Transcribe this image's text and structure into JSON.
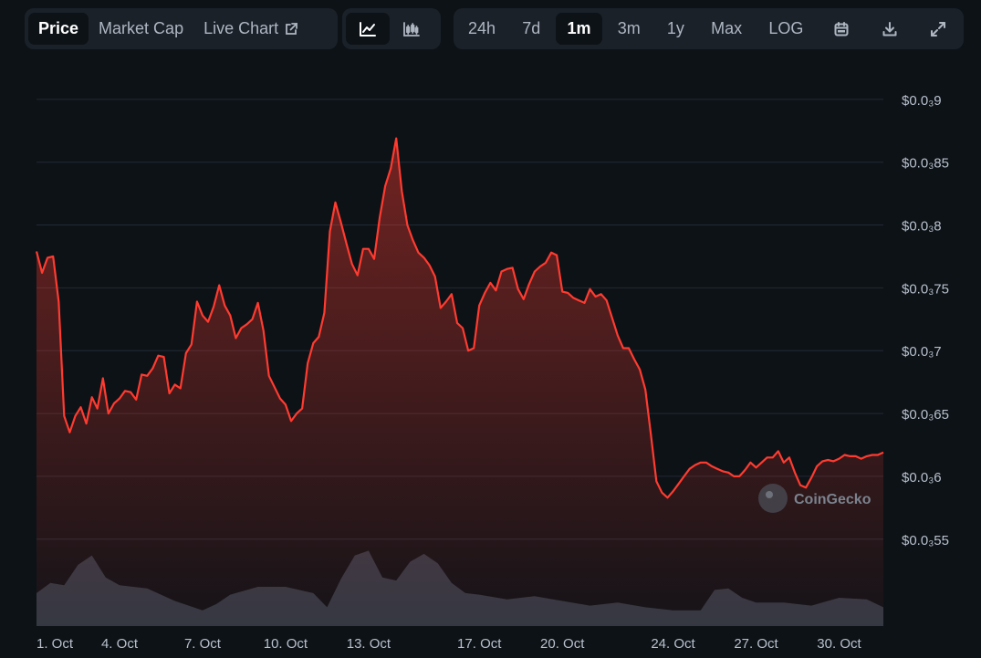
{
  "toolbar": {
    "metric_tabs": [
      {
        "label": "Price",
        "active": true
      },
      {
        "label": "Market Cap",
        "active": false
      },
      {
        "label": "Live Chart",
        "active": false
      }
    ],
    "chart_style_buttons": [
      {
        "icon": "line-chart-icon",
        "active": true
      },
      {
        "icon": "candlestick-chart-icon",
        "active": false
      }
    ],
    "ranges": [
      {
        "label": "24h",
        "active": false
      },
      {
        "label": "7d",
        "active": false
      },
      {
        "label": "1m",
        "active": true
      },
      {
        "label": "3m",
        "active": false
      },
      {
        "label": "1y",
        "active": false
      },
      {
        "label": "Max",
        "active": false
      }
    ],
    "log_label": "LOG",
    "tool_icons": [
      "calendar-icon",
      "download-icon",
      "expand-icon"
    ]
  },
  "watermark": "CoinGecko",
  "colors": {
    "line": "#ff3b30",
    "grid": "#232a33",
    "volume": "#2f3843",
    "background": "#0d1217",
    "toolbar_bg": "#1b2129"
  },
  "chart_data": {
    "type": "area",
    "title": "",
    "xlabel": "",
    "ylabel": "",
    "y_unit": "USD",
    "y_label_note": "$0.0₃9 = $0.0009 (subscript = count of zeros after decimal point)",
    "ylim": [
      0.000552,
      0.000905
    ],
    "y_ticks": [
      {
        "value": 0.00055,
        "label": "$0.0₃55"
      },
      {
        "value": 0.0006,
        "label": "$0.0₃6"
      },
      {
        "value": 0.00065,
        "label": "$0.0₃65"
      },
      {
        "value": 0.0007,
        "label": "$0.0₃7"
      },
      {
        "value": 0.00075,
        "label": "$0.0₃75"
      },
      {
        "value": 0.0008,
        "label": "$0.0₃8"
      },
      {
        "value": 0.00085,
        "label": "$0.0₃85"
      },
      {
        "value": 0.0009,
        "label": "$0.0₃9"
      }
    ],
    "x_domain_days": [
      1.0,
      31.6
    ],
    "x_ticks": [
      {
        "day": 1,
        "label": "1. Oct"
      },
      {
        "day": 4,
        "label": "4. Oct"
      },
      {
        "day": 7,
        "label": "7. Oct"
      },
      {
        "day": 10,
        "label": "10. Oct"
      },
      {
        "day": 13,
        "label": "13. Oct"
      },
      {
        "day": 17,
        "label": "17. Oct"
      },
      {
        "day": 20,
        "label": "20. Oct"
      },
      {
        "day": 24,
        "label": "24. Oct"
      },
      {
        "day": 27,
        "label": "27. Oct"
      },
      {
        "day": 30,
        "label": "30. Oct"
      }
    ],
    "grid": true,
    "series": [
      {
        "x_day": [
          1.0,
          1.2,
          1.4,
          1.6,
          1.8,
          2.0,
          2.2,
          2.4,
          2.6,
          2.8,
          3.0,
          3.2,
          3.4,
          3.6,
          3.8,
          4.0,
          4.2,
          4.4,
          4.6,
          4.8,
          5.0,
          5.2,
          5.4,
          5.6,
          5.8,
          6.0,
          6.2,
          6.4,
          6.6,
          6.8,
          7.0,
          7.2,
          7.4,
          7.6,
          7.8,
          8.0,
          8.2,
          8.4,
          8.6,
          8.8,
          9.0,
          9.2,
          9.4,
          9.6,
          9.8,
          10.0,
          10.2,
          10.4,
          10.6,
          10.8,
          11.0,
          11.2,
          11.4,
          11.6,
          11.8,
          12.0,
          12.2,
          12.4,
          12.6,
          12.8,
          13.0,
          13.2,
          13.4,
          13.6,
          13.8,
          14.0,
          14.2,
          14.4,
          14.6,
          14.8,
          15.0,
          15.2,
          15.4,
          15.6,
          15.8,
          16.0,
          16.2,
          16.4,
          16.6,
          16.8,
          17.0,
          17.2,
          17.4,
          17.6,
          17.8,
          18.0,
          18.2,
          18.4,
          18.6,
          18.8,
          19.0,
          19.2,
          19.4,
          19.6,
          19.8,
          20.0,
          20.2,
          20.4,
          20.6,
          20.8,
          21.0,
          21.2,
          21.4,
          21.6,
          21.8,
          22.0,
          22.2,
          22.4,
          22.6,
          22.8,
          23.0,
          23.2,
          23.4,
          23.6,
          23.8,
          24.0,
          24.2,
          24.4,
          24.6,
          24.8,
          25.0,
          25.2,
          25.4,
          25.6,
          25.8,
          26.0,
          26.2,
          26.4,
          26.6,
          26.8,
          27.0,
          27.2,
          27.4,
          27.6,
          27.8,
          28.0,
          28.2,
          28.4,
          28.6,
          28.8,
          29.0,
          29.2,
          29.4,
          29.6,
          29.8,
          30.0,
          30.2,
          30.4,
          30.6,
          30.8,
          31.0,
          31.2,
          31.4,
          31.6
        ],
        "y": [
          0.000779,
          0.000762,
          0.000774,
          0.000775,
          0.000739,
          0.000648,
          0.000635,
          0.000648,
          0.000655,
          0.000642,
          0.000663,
          0.000654,
          0.000678,
          0.00065,
          0.000658,
          0.000662,
          0.000668,
          0.000667,
          0.000661,
          0.000681,
          0.00068,
          0.000686,
          0.000696,
          0.000695,
          0.000666,
          0.000673,
          0.00067,
          0.000698,
          0.000705,
          0.000739,
          0.000728,
          0.000723,
          0.000735,
          0.000752,
          0.000736,
          0.000728,
          0.00071,
          0.000718,
          0.000721,
          0.000725,
          0.000738,
          0.000716,
          0.00068,
          0.000671,
          0.000662,
          0.000657,
          0.000644,
          0.00065,
          0.000654,
          0.00069,
          0.000706,
          0.000711,
          0.00073,
          0.000795,
          0.000818,
          0.000802,
          0.000785,
          0.000769,
          0.00076,
          0.000781,
          0.000781,
          0.000773,
          0.000806,
          0.000831,
          0.000845,
          0.000869,
          0.000827,
          0.0008,
          0.000788,
          0.000778,
          0.000774,
          0.000768,
          0.000759,
          0.000734,
          0.000739,
          0.000745,
          0.000722,
          0.000718,
          0.0007,
          0.000702,
          0.000736,
          0.000746,
          0.000754,
          0.000748,
          0.000763,
          0.000765,
          0.000766,
          0.000749,
          0.000741,
          0.000753,
          0.000763,
          0.000767,
          0.00077,
          0.000778,
          0.000776,
          0.000747,
          0.000746,
          0.000742,
          0.00074,
          0.000738,
          0.000749,
          0.000743,
          0.000745,
          0.00074,
          0.000726,
          0.000712,
          0.000702,
          0.000702,
          0.000693,
          0.000685,
          0.000669,
          0.000633,
          0.000596,
          0.000587,
          0.000583,
          0.000588,
          0.000594,
          0.0006,
          0.000606,
          0.000609,
          0.000611,
          0.000611,
          0.000608,
          0.000606,
          0.000604,
          0.000603,
          0.0006,
          0.0006,
          0.000605,
          0.000611,
          0.000607,
          0.000611,
          0.000615,
          0.000615,
          0.00062,
          0.000611,
          0.000615,
          0.000603,
          0.000593,
          0.000591,
          0.000599,
          0.000608,
          0.000612,
          0.000613,
          0.000612,
          0.000614,
          0.000617,
          0.000616,
          0.000616,
          0.000614,
          0.000616,
          0.000617,
          0.000617,
          0.000619
        ]
      }
    ],
    "volume": {
      "x_day": [
        1,
        1.5,
        2,
        2.5,
        3,
        3.5,
        4,
        5,
        6,
        7,
        7.5,
        8,
        9,
        10,
        11,
        11.5,
        12,
        12.5,
        13,
        13.5,
        14,
        14.5,
        15,
        15.5,
        16,
        16.5,
        17,
        18,
        19,
        20,
        21,
        22,
        23,
        24,
        25,
        25.5,
        26,
        26.5,
        27,
        28,
        29,
        30,
        31,
        31.6
      ],
      "relative": [
        0.42,
        0.55,
        0.52,
        0.78,
        0.9,
        0.62,
        0.52,
        0.48,
        0.32,
        0.2,
        0.28,
        0.4,
        0.5,
        0.5,
        0.42,
        0.24,
        0.6,
        0.9,
        0.96,
        0.62,
        0.58,
        0.82,
        0.92,
        0.8,
        0.55,
        0.42,
        0.4,
        0.34,
        0.38,
        0.32,
        0.26,
        0.3,
        0.24,
        0.2,
        0.2,
        0.46,
        0.48,
        0.36,
        0.3,
        0.3,
        0.26,
        0.36,
        0.34,
        0.24
      ]
    }
  }
}
